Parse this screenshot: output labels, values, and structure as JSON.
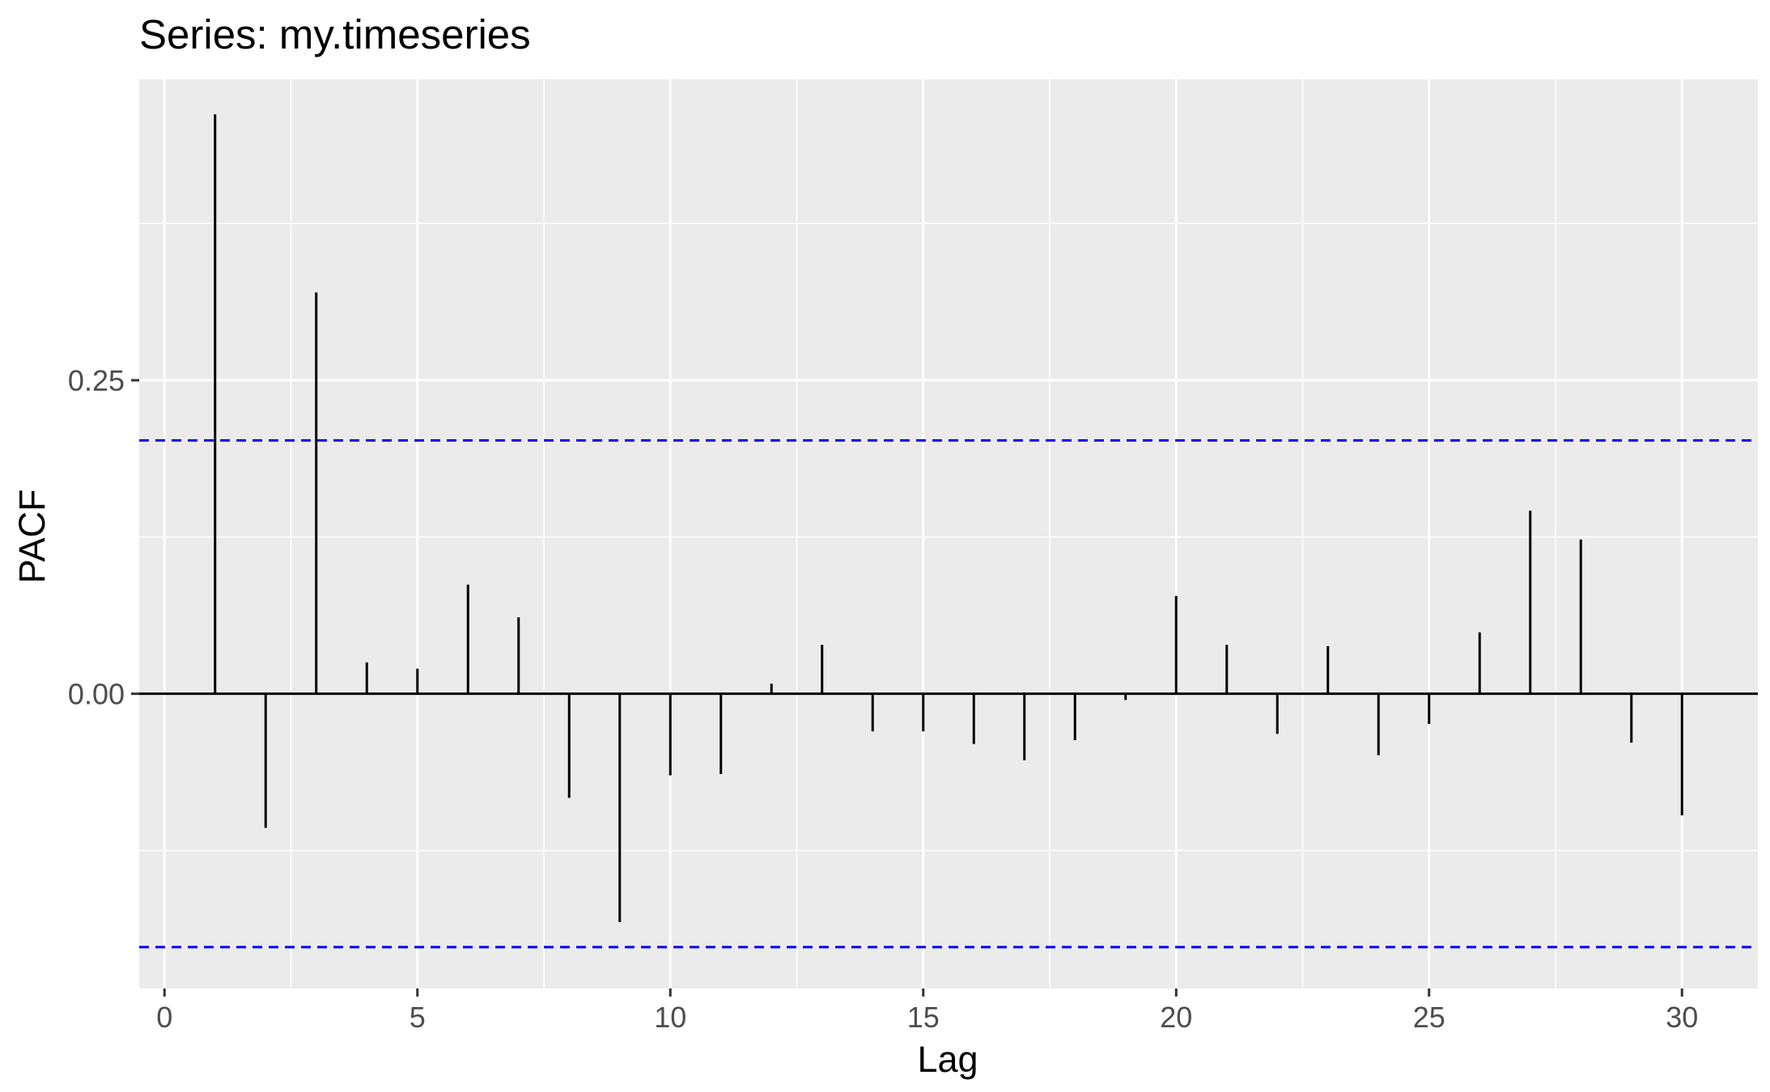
{
  "chart_data": {
    "type": "bar",
    "subtype": "pacf",
    "title": "Series: my.timeseries",
    "xlabel": "Lag",
    "ylabel": "PACF",
    "xlim": [
      -0.5,
      31.5
    ],
    "ylim": [
      -0.235,
      0.49
    ],
    "x_ticks": [
      0,
      5,
      10,
      15,
      20,
      25,
      30
    ],
    "x_tick_labels": [
      "0",
      "5",
      "10",
      "15",
      "20",
      "25",
      "30"
    ],
    "y_ticks": [
      0.0,
      0.25
    ],
    "y_tick_labels": [
      "0.00",
      "0.25"
    ],
    "x_minor_ticks": [
      2.5,
      7.5,
      12.5,
      17.5,
      22.5,
      27.5
    ],
    "y_minor_ticks": [
      -0.125,
      0.125,
      0.375
    ],
    "grid": true,
    "lags": [
      1,
      2,
      3,
      4,
      5,
      6,
      7,
      8,
      9,
      10,
      11,
      12,
      13,
      14,
      15,
      16,
      17,
      18,
      19,
      20,
      21,
      22,
      23,
      24,
      25,
      26,
      27,
      28,
      29,
      30
    ],
    "values": [
      0.462,
      -0.107,
      0.32,
      0.025,
      0.02,
      0.087,
      0.061,
      -0.083,
      -0.182,
      -0.065,
      -0.064,
      0.008,
      0.039,
      -0.03,
      -0.03,
      -0.04,
      -0.053,
      -0.037,
      -0.005,
      0.078,
      0.039,
      -0.032,
      0.038,
      -0.049,
      -0.024,
      0.049,
      0.146,
      0.123,
      -0.039,
      -0.097
    ],
    "confidence_bounds": [
      0.202,
      -0.202
    ],
    "colors": {
      "panel_background": "#ebebeb",
      "grid": "#ffffff",
      "bars": "#000000",
      "zero_line": "#000000",
      "confidence_line": "#0000ff",
      "tick_text": "#4d4d4d",
      "tick_mark": "#333333"
    }
  }
}
